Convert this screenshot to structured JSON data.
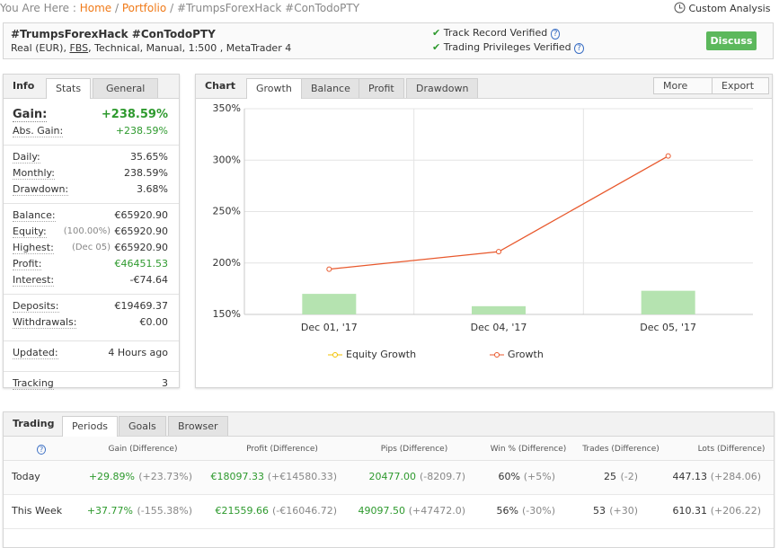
{
  "breadcrumb": {
    "prefix": "You Are Here :",
    "links": [
      "Home",
      "Portfolio"
    ],
    "separator": "/",
    "current": "#TrumpsForexHack #ConTodoPTY"
  },
  "custom_analysis": "Custom Analysis",
  "header": {
    "title": "#TrumpsForexHack #ConTodoPTY",
    "subtitle": [
      "Real (EUR), ",
      "FBS",
      ", Technical, Manual, 1:500 , MetaTrader 4"
    ],
    "verified": [
      "Track Record Verified",
      "Trading Privileges Verified"
    ],
    "help": "?",
    "button": "Discuss"
  },
  "info": {
    "label": "Info",
    "tabs": [
      "Stats",
      "General"
    ],
    "gain": {
      "label": "Gain:",
      "value": "+238.59%"
    },
    "groups": [
      [
        {
          "label": "Abs. Gain:",
          "value": "+238.59%",
          "green": true
        }
      ],
      [
        {
          "label": "Daily:",
          "value": "35.65%"
        },
        {
          "label": "Monthly:",
          "value": "238.59%"
        },
        {
          "label": "Drawdown:",
          "value": "3.68%"
        }
      ],
      [
        {
          "label": "Balance:",
          "value": "€65920.90"
        },
        {
          "label": "Equity:",
          "note": "(100.00%)",
          "value": "€65920.90"
        },
        {
          "label": "Highest:",
          "note": "(Dec 05)",
          "value": "€65920.90"
        },
        {
          "label": "Profit:",
          "value": "€46451.53",
          "green": true
        },
        {
          "label": "Interest:",
          "value": "-€74.64"
        }
      ],
      [
        {
          "label": "Deposits:",
          "value": "€19469.37"
        },
        {
          "label": "Withdrawals:",
          "value": "€0.00"
        }
      ],
      [
        {
          "label": "Updated:",
          "value": "4 Hours ago"
        }
      ],
      [
        {
          "label": "Tracking",
          "value": "3"
        }
      ]
    ]
  },
  "chart_panel": {
    "label": "Chart",
    "tabs": [
      "Growth",
      "Balance",
      "Profit",
      "Drawdown"
    ],
    "buttons": [
      "More",
      "Export"
    ]
  },
  "chart_data": {
    "type": "line",
    "categories": [
      "Dec 01, '17",
      "Dec 04, '17",
      "Dec 05, '17"
    ],
    "ylim": [
      150,
      350
    ],
    "yticks": [
      {
        "value": 150,
        "label": "150%"
      },
      {
        "value": 200,
        "label": "200%"
      },
      {
        "value": 250,
        "label": "250%"
      },
      {
        "value": 300,
        "label": "300%"
      },
      {
        "value": 350,
        "label": "350%"
      }
    ],
    "grid": true,
    "series": [
      {
        "name": "Growth",
        "color": "#e8582c",
        "values": [
          194,
          211,
          304
        ]
      }
    ],
    "bars": {
      "color": "#b5e3b0",
      "values": [
        170,
        158,
        173
      ]
    },
    "legend": [
      {
        "name": "Equity Growth",
        "color": "#f2c200"
      },
      {
        "name": "Growth",
        "color": "#e8582c"
      }
    ]
  },
  "trading": {
    "label": "Trading",
    "tabs": [
      "Periods",
      "Goals",
      "Browser"
    ],
    "help": "?",
    "columns": [
      "Gain (Difference)",
      "Profit (Difference)",
      "Pips (Difference)",
      "Win % (Difference)",
      "Trades (Difference)",
      "Lots (Difference)"
    ],
    "rows": [
      {
        "period": "Today",
        "cells": [
          [
            "+29.89%",
            "(+23.73%)"
          ],
          [
            "€18097.33",
            "(+€14580.33)"
          ],
          [
            "20477.00",
            "(-8209.7)"
          ],
          [
            "60%",
            "(+5%)"
          ],
          [
            "25",
            "(-2)"
          ],
          [
            "447.13",
            "(+284.06)"
          ]
        ]
      },
      {
        "period": "This Week",
        "cells": [
          [
            "+37.77%",
            "(-155.38%)"
          ],
          [
            "€21559.66",
            "(-€16046.72)"
          ],
          [
            "49097.50",
            "(+47472.0)"
          ],
          [
            "56%",
            "(-30%)"
          ],
          [
            "53",
            "(+30)"
          ],
          [
            "610.31",
            "(+206.22)"
          ]
        ]
      }
    ]
  }
}
